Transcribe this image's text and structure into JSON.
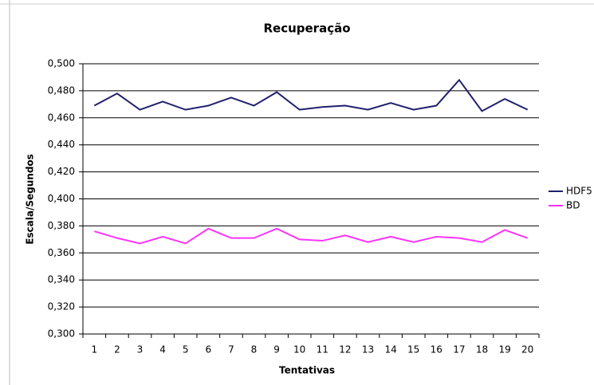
{
  "chart_data": {
    "type": "line",
    "title": "Recuperação",
    "x_label": "Tentativas",
    "y_label": "Escala/Segundos",
    "categories": [
      "1",
      "2",
      "3",
      "4",
      "5",
      "6",
      "7",
      "8",
      "9",
      "10",
      "11",
      "12",
      "13",
      "14",
      "15",
      "16",
      "17",
      "18",
      "19",
      "20"
    ],
    "series": [
      {
        "name": "HDF5",
        "color": "#20206e",
        "values": [
          0.469,
          0.478,
          0.466,
          0.472,
          0.466,
          0.469,
          0.475,
          0.469,
          0.479,
          0.466,
          0.468,
          0.469,
          0.466,
          0.471,
          0.466,
          0.469,
          0.488,
          0.465,
          0.474,
          0.466
        ]
      },
      {
        "name": "BD",
        "color": "#ff33ff",
        "values": [
          0.376,
          0.371,
          0.367,
          0.372,
          0.367,
          0.378,
          0.371,
          0.371,
          0.378,
          0.37,
          0.369,
          0.373,
          0.368,
          0.372,
          0.368,
          0.372,
          0.371,
          0.368,
          0.377,
          0.371
        ]
      }
    ],
    "ylim": [
      0.3,
      0.5
    ],
    "yticks": [
      {
        "value": 0.3,
        "label": "0,300"
      },
      {
        "value": 0.32,
        "label": "0,320"
      },
      {
        "value": 0.34,
        "label": "0,340"
      },
      {
        "value": 0.36,
        "label": "0,360"
      },
      {
        "value": 0.38,
        "label": "0,380"
      },
      {
        "value": 0.4,
        "label": "0,400"
      },
      {
        "value": 0.42,
        "label": "0,420"
      },
      {
        "value": 0.44,
        "label": "0,440"
      },
      {
        "value": 0.46,
        "label": "0,460"
      },
      {
        "value": 0.48,
        "label": "0,480"
      },
      {
        "value": 0.5,
        "label": "0,500"
      }
    ],
    "grid": true,
    "legend": "right"
  }
}
